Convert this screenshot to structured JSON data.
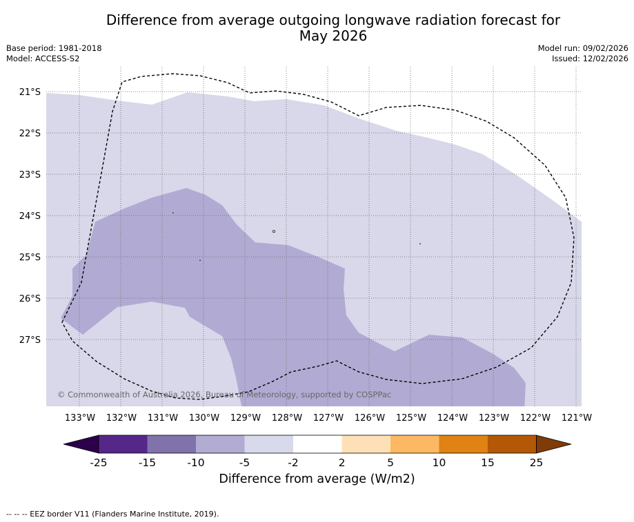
{
  "header": {
    "title_line1": "Difference from average outgoing longwave radiation forecast for",
    "title_line2": "May 2026",
    "base_period": "Base period: 1981-2018",
    "model": "Model: ACCESS-S2",
    "model_run": "Model run: 09/02/2026",
    "issued": "Issued: 12/02/2026"
  },
  "map": {
    "latitudes": [
      "21°S",
      "22°S",
      "23°S",
      "24°S",
      "25°S",
      "26°S",
      "27°S"
    ],
    "longitudes": [
      "133°W",
      "132°W",
      "131°W",
      "130°W",
      "129°W",
      "128°W",
      "127°W",
      "126°W",
      "125°W",
      "124°W",
      "123°W",
      "122°W",
      "121°W"
    ],
    "copyright": "© Commonwealth of Australia 2026, Bureau of Meteorology, supported by COSPPac",
    "colors": {
      "light_lavender": "#d8d8ea",
      "lavender": "#b1abd3",
      "grid": "#555555"
    }
  },
  "colorbar": {
    "ticks": [
      "-25",
      "-15",
      "-10",
      "-5",
      "-2",
      "2",
      "5",
      "10",
      "15",
      "25"
    ],
    "colors": [
      "#2d004b",
      "#542788",
      "#8073ac",
      "#b2abd2",
      "#d8daeb",
      "#ffffff",
      "#fee0b6",
      "#fdb863",
      "#e08214",
      "#b35806",
      "#7f3b08"
    ],
    "title": "Difference from average (W/m2)"
  },
  "footnote": "--  --  -- EEZ border V11 (Flanders Marine Institute, 2019)."
}
